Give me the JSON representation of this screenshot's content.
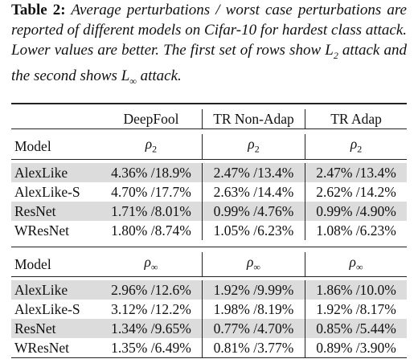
{
  "caption": {
    "label": "Table 2:",
    "text_part1": " Average perturbations / worst case perturbations are reported of different models on Cifar-10 for hardest class attack. Lower values are better. The first set of rows show ",
    "l2_base": "L",
    "l2_sub": "2",
    "text_part2": " attack and the second shows ",
    "linf_base": "L",
    "linf_sub": "∞",
    "text_part3": " attack."
  },
  "table": {
    "headers": [
      "DeepFool",
      "TR Non-Adap",
      "TR Adap"
    ],
    "section1": {
      "model_label": "Model",
      "rho_base": "ρ",
      "rho_sub": "2",
      "rows": [
        {
          "model": "AlexLike",
          "values": [
            "4.36% /18.9%",
            "2.47% /13.4%",
            "2.47% /13.4%"
          ],
          "shaded": true
        },
        {
          "model": "AlexLike-S",
          "values": [
            "4.70% /17.7%",
            "2.63% /14.4%",
            "2.62% /14.2%"
          ],
          "shaded": false
        },
        {
          "model": "ResNet",
          "values": [
            "1.71% /8.01%",
            "0.99% /4.76%",
            "0.99% /4.90%"
          ],
          "shaded": true
        },
        {
          "model": "WResNet",
          "values": [
            "1.80% /8.74%",
            "1.05% /6.23%",
            "1.08% /6.23%"
          ],
          "shaded": false
        }
      ]
    },
    "section2": {
      "model_label": "Model",
      "rho_base": "ρ",
      "rho_sub": "∞",
      "rows": [
        {
          "model": "AlexLike",
          "values": [
            "2.96% /12.6%",
            "1.92% /9.99%",
            "1.86% /10.0%"
          ],
          "shaded": true
        },
        {
          "model": "AlexLike-S",
          "values": [
            "3.12% /12.2%",
            "1.98% /8.19%",
            "1.92% /8.17%"
          ],
          "shaded": false
        },
        {
          "model": "ResNet",
          "values": [
            "1.34% /9.65%",
            "0.77% /4.70%",
            "0.85% /5.44%"
          ],
          "shaded": true
        },
        {
          "model": "WResNet",
          "values": [
            "1.35% /6.49%",
            "0.81% /3.77%",
            "0.89% /3.90%"
          ],
          "shaded": false
        }
      ]
    }
  }
}
